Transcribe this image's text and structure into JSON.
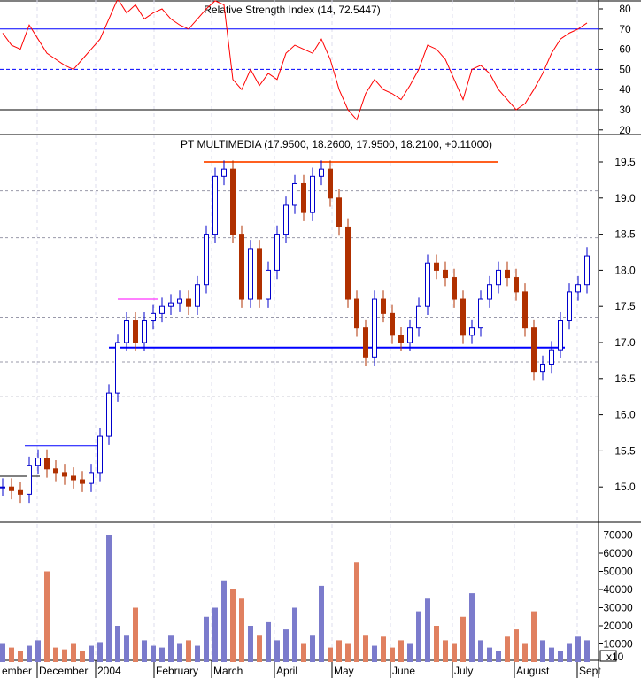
{
  "chart_data": [
    {
      "type": "line",
      "title": "Relative Strength Index (14, 72.5447)",
      "ylim": [
        18,
        88
      ],
      "y_ticks": [
        "80",
        "70",
        "60",
        "50",
        "40",
        "30",
        "20"
      ],
      "reference_lines": [
        70,
        50,
        30
      ],
      "color": "#ff0000",
      "values": [
        68,
        62,
        60,
        72,
        65,
        58,
        55,
        52,
        50,
        55,
        60,
        65,
        75,
        85,
        78,
        82,
        75,
        78,
        80,
        75,
        72,
        70,
        75,
        80,
        84,
        82,
        45,
        40,
        50,
        42,
        48,
        45,
        58,
        62,
        60,
        58,
        65,
        55,
        40,
        30,
        25,
        38,
        45,
        40,
        38,
        35,
        42,
        50,
        62,
        60,
        55,
        45,
        35,
        50,
        52,
        48,
        40,
        35,
        30,
        33,
        40,
        48,
        58,
        65,
        68,
        70,
        73
      ]
    },
    {
      "type": "candlestick",
      "title": "PT MULTIMEDIA (17.9500, 18.2600, 17.9500, 18.2100, +0.11000)",
      "ylim": [
        14.6,
        19.9
      ],
      "y_ticks": [
        "19.5",
        "19.0",
        "18.5",
        "18.0",
        "17.5",
        "17.0",
        "16.5",
        "16.0",
        "15.5",
        "15.0"
      ],
      "up_color": "#0000cc",
      "down_color": "#b03000",
      "closes": [
        15.0,
        14.95,
        14.9,
        15.3,
        15.4,
        15.25,
        15.2,
        15.15,
        15.1,
        15.05,
        15.2,
        15.7,
        16.3,
        17.0,
        17.3,
        17.0,
        17.3,
        17.4,
        17.5,
        17.55,
        17.6,
        17.5,
        17.8,
        18.5,
        19.3,
        19.4,
        18.5,
        17.6,
        18.3,
        17.6,
        18.0,
        18.5,
        18.9,
        19.2,
        18.8,
        19.3,
        19.4,
        19.0,
        18.6,
        17.6,
        17.2,
        16.8,
        17.6,
        17.4,
        17.1,
        17.0,
        17.2,
        17.5,
        18.1,
        18.0,
        17.9,
        17.6,
        17.1,
        17.2,
        17.6,
        17.8,
        18.0,
        17.9,
        17.7,
        17.2,
        16.6,
        16.7,
        16.9,
        17.3,
        17.7,
        17.8,
        18.2
      ],
      "trend_lines": [
        {
          "level": 19.5,
          "color": "#ff6020"
        },
        {
          "level": 17.6,
          "color": "#ff00ff"
        },
        {
          "level": 16.93,
          "color": "#0000ff"
        },
        {
          "level": 15.57,
          "color": "#0000ff"
        },
        {
          "level": 15.15,
          "color": "#000000"
        }
      ]
    },
    {
      "type": "bar",
      "ylim": [
        0,
        75000
      ],
      "y_ticks": [
        "70000",
        "60000",
        "50000",
        "40000",
        "30000",
        "20000",
        "10000"
      ],
      "scale_label": "x10",
      "up_color": "#7b7bcc",
      "down_color": "#e08060",
      "values": [
        10000,
        8000,
        6000,
        9000,
        12000,
        50000,
        8000,
        7000,
        10000,
        6000,
        9000,
        11000,
        70000,
        20000,
        15000,
        30000,
        12000,
        9000,
        8000,
        15000,
        10000,
        12000,
        9000,
        25000,
        30000,
        45000,
        40000,
        35000,
        20000,
        15000,
        22000,
        12000,
        18000,
        30000,
        10000,
        15000,
        42000,
        8000,
        12000,
        10000,
        55000,
        15000,
        9000,
        14000,
        8000,
        12000,
        10000,
        28000,
        35000,
        20000,
        12000,
        10000,
        25000,
        38000,
        12000,
        8000,
        6000,
        14000,
        18000,
        10000,
        28000,
        12000,
        8000,
        6000,
        10000,
        14000,
        12000
      ]
    }
  ],
  "x_axis": {
    "labels": [
      "ember",
      "December",
      "2004",
      "February",
      "March",
      "April",
      "May",
      "June",
      "July",
      "August",
      "Sept"
    ]
  }
}
